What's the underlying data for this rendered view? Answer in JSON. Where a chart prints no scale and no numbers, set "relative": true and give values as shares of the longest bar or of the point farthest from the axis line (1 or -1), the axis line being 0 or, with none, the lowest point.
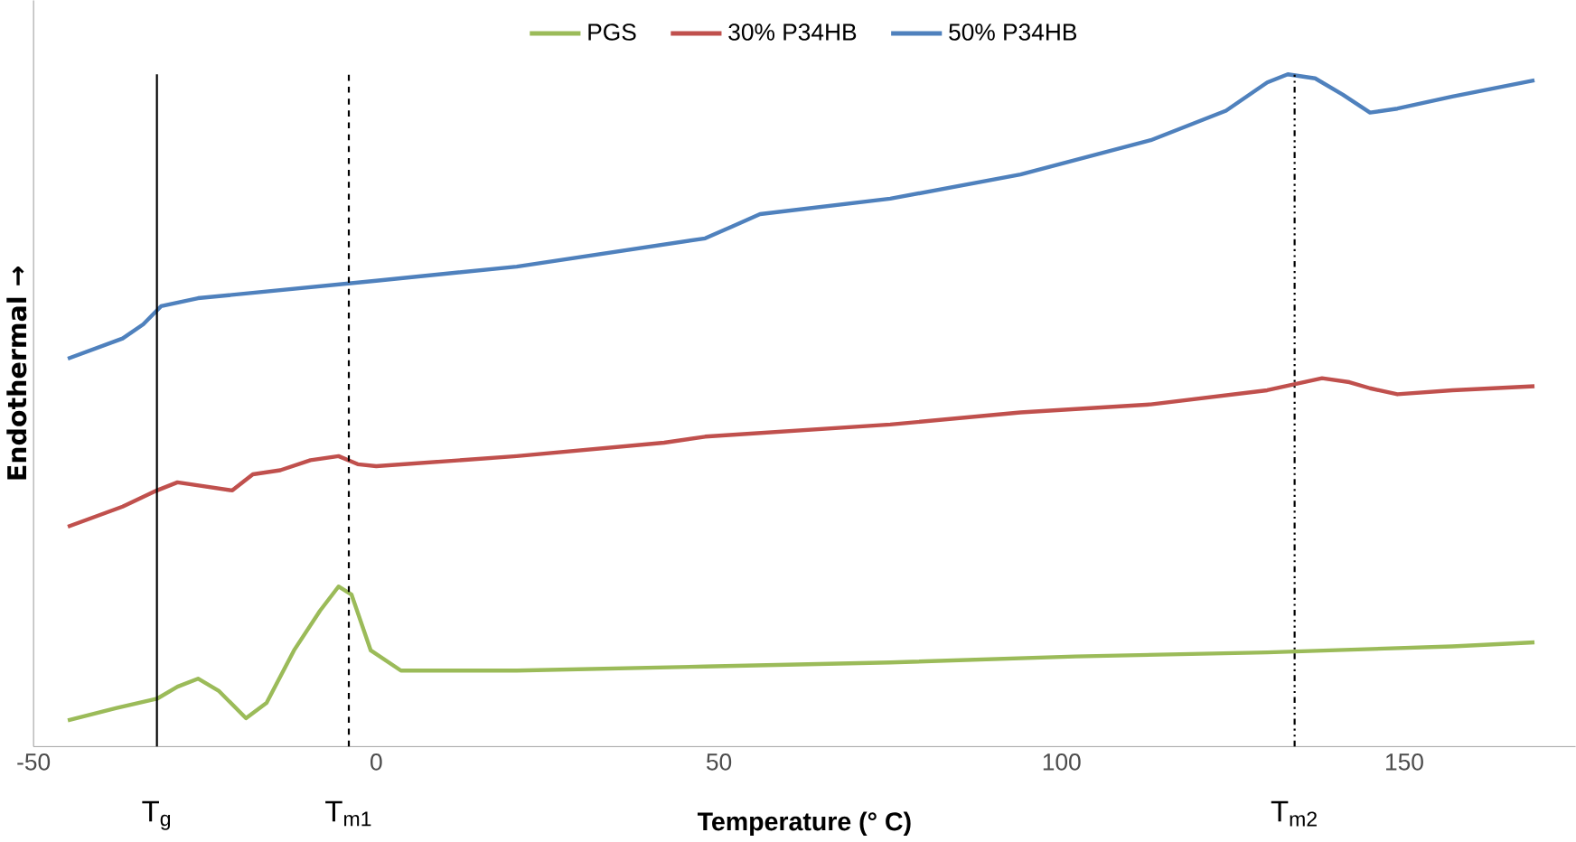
{
  "chart_data": {
    "type": "line",
    "relative": true,
    "xlabel": "Temperature (°  C)",
    "ylabel": "Endothermal →",
    "xlim": [
      -50,
      175
    ],
    "xticks": [
      -50,
      0,
      50,
      100,
      150
    ],
    "legend": "top",
    "grid": false,
    "marker": "none",
    "line_style": "solid",
    "series": [
      {
        "name": "PGS",
        "color": "#9bbb59",
        "x": [
          -45,
          -38,
          -32,
          -29,
          -26,
          -23,
          -19,
          -16,
          -12,
          -8.2,
          -5.5,
          -3.6,
          -0.8,
          3.6,
          20.5,
          48,
          75,
          102,
          130,
          157,
          169
        ],
        "values": [
          0.039,
          0.057,
          0.071,
          0.089,
          0.101,
          0.083,
          0.042,
          0.065,
          0.143,
          0.202,
          0.238,
          0.226,
          0.143,
          0.113,
          0.113,
          0.119,
          0.125,
          0.134,
          0.14,
          0.149,
          0.155
        ]
      },
      {
        "name": "30% P34HB",
        "color": "#c0504d",
        "x": [
          -45,
          -37,
          -32,
          -29,
          -25,
          -21,
          -18,
          -14,
          -9.6,
          -5.5,
          -2.7,
          0,
          20.5,
          42,
          48,
          75,
          94,
          113,
          130,
          134,
          138,
          142,
          145,
          149,
          157,
          169
        ],
        "values": [
          0.327,
          0.357,
          0.381,
          0.393,
          0.387,
          0.381,
          0.405,
          0.411,
          0.426,
          0.432,
          0.42,
          0.417,
          0.432,
          0.452,
          0.461,
          0.479,
          0.497,
          0.509,
          0.53,
          0.539,
          0.548,
          0.542,
          0.533,
          0.524,
          0.53,
          0.536
        ]
      },
      {
        "name": "50% P34HB",
        "color": "#4f81bd",
        "x": [
          -45,
          -37,
          -34,
          -31.4,
          -26,
          0,
          20.5,
          48,
          52,
          56,
          75,
          94,
          113,
          124,
          130,
          133,
          137,
          141,
          145,
          149,
          157,
          169
        ],
        "values": [
          0.577,
          0.607,
          0.628,
          0.655,
          0.667,
          0.693,
          0.714,
          0.756,
          0.774,
          0.792,
          0.815,
          0.851,
          0.902,
          0.946,
          0.988,
          1.0,
          0.994,
          0.97,
          0.943,
          0.949,
          0.967,
          0.991
        ]
      }
    ],
    "ref_lines": [
      {
        "axis": "x",
        "value": -32,
        "label": "T$_{g}$",
        "line_style": "solid",
        "color": "#000000"
      },
      {
        "axis": "x",
        "value": -4,
        "label": "T$_{m1}$",
        "line_style": "dashed",
        "color": "#000000"
      },
      {
        "axis": "x",
        "value": 134,
        "label": "T$_{m2}$",
        "line_style": "dashdot",
        "color": "#000000"
      }
    ]
  }
}
